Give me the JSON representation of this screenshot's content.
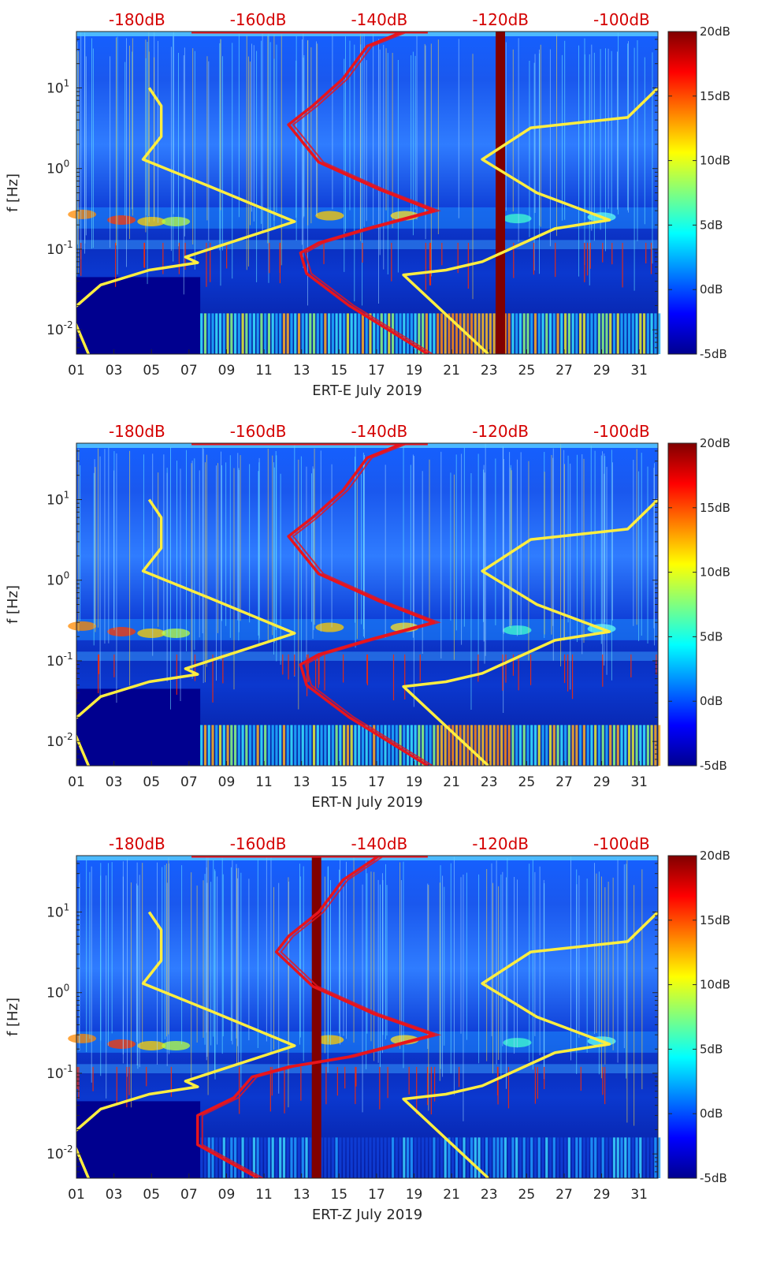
{
  "chart_data": [
    {
      "type": "heatmap",
      "station": "ERT-E",
      "xlabel": "ERT-E July 2019",
      "ylabel": "f [Hz]",
      "x_ticks": [
        "01",
        "03",
        "05",
        "07",
        "09",
        "11",
        "13",
        "15",
        "17",
        "19",
        "21",
        "23",
        "25",
        "27",
        "29",
        "31"
      ],
      "y_ticks": [
        {
          "value": 0.01,
          "base": "10",
          "exp": "-2"
        },
        {
          "value": 0.1,
          "base": "10",
          "exp": "-1"
        },
        {
          "value": 1,
          "base": "10",
          "exp": "0"
        },
        {
          "value": 10,
          "base": "10",
          "exp": "1"
        }
      ],
      "ylim": [
        0.005,
        50
      ],
      "xlim": [
        1,
        32
      ],
      "top_axis_ticks": [
        "-180dB",
        "-160dB",
        "-140dB",
        "-120dB",
        "-100dB"
      ],
      "top_axis_range_db": [
        -190,
        -94
      ],
      "colorbar": {
        "range_db": [
          -5,
          20
        ],
        "ticks": [
          "20dB",
          "15dB",
          "10dB",
          "5dB",
          "0dB",
          "-5dB"
        ]
      },
      "gap_band_day": 23.6,
      "yellow_curves": [
        {
          "name": "low noise model",
          "points": [
            [
              -178,
              10
            ],
            [
              -176,
              6
            ],
            [
              -176,
              2.5
            ],
            [
              -179,
              1.3
            ],
            [
              -168,
              0.6
            ],
            [
              -154,
              0.22
            ],
            [
              -172,
              0.08
            ],
            [
              -170,
              0.068
            ],
            [
              -178,
              0.055
            ],
            [
              -186,
              0.036
            ],
            [
              -191,
              0.017
            ],
            [
              -188,
              0.005
            ]
          ]
        },
        {
          "name": "high noise model",
          "points": [
            [
              -94,
              10
            ],
            [
              -99,
              4.3
            ],
            [
              -115,
              3.2
            ],
            [
              -123,
              1.3
            ],
            [
              -114,
              0.5
            ],
            [
              -102,
              0.23
            ],
            [
              -111,
              0.18
            ],
            [
              -123,
              0.07
            ],
            [
              -129,
              0.055
            ],
            [
              -136,
              0.048
            ],
            [
              -122,
              0.005
            ]
          ]
        }
      ],
      "red_curve": {
        "name": "station PSD",
        "points": [
          [
            -136,
            50
          ],
          [
            -142,
            33
          ],
          [
            -146,
            13
          ],
          [
            -151,
            6
          ],
          [
            -155,
            3.5
          ],
          [
            -150,
            1.2
          ],
          [
            -140,
            0.55
          ],
          [
            -131,
            0.3
          ],
          [
            -142,
            0.18
          ],
          [
            -150,
            0.12
          ],
          [
            -153,
            0.09
          ],
          [
            -152,
            0.05
          ],
          [
            -145,
            0.02
          ],
          [
            -132,
            0.005
          ]
        ]
      }
    },
    {
      "type": "heatmap",
      "station": "ERT-N",
      "xlabel": "ERT-N July 2019",
      "ylabel": "f [Hz]",
      "x_ticks": [
        "01",
        "03",
        "05",
        "07",
        "09",
        "11",
        "13",
        "15",
        "17",
        "19",
        "21",
        "23",
        "25",
        "27",
        "29",
        "31"
      ],
      "y_ticks": [
        {
          "value": 0.01,
          "base": "10",
          "exp": "-2"
        },
        {
          "value": 0.1,
          "base": "10",
          "exp": "-1"
        },
        {
          "value": 1,
          "base": "10",
          "exp": "0"
        },
        {
          "value": 10,
          "base": "10",
          "exp": "1"
        }
      ],
      "ylim": [
        0.005,
        50
      ],
      "xlim": [
        1,
        32
      ],
      "top_axis_ticks": [
        "-180dB",
        "-160dB",
        "-140dB",
        "-120dB",
        "-100dB"
      ],
      "top_axis_range_db": [
        -190,
        -94
      ],
      "colorbar": {
        "range_db": [
          -5,
          20
        ],
        "ticks": [
          "20dB",
          "15dB",
          "10dB",
          "5dB",
          "0dB",
          "-5dB"
        ]
      },
      "gap_band_day": null,
      "yellow_curves": [
        {
          "name": "low noise model",
          "points": [
            [
              -178,
              10
            ],
            [
              -176,
              6
            ],
            [
              -176,
              2.5
            ],
            [
              -179,
              1.3
            ],
            [
              -168,
              0.6
            ],
            [
              -154,
              0.22
            ],
            [
              -172,
              0.08
            ],
            [
              -170,
              0.068
            ],
            [
              -178,
              0.055
            ],
            [
              -186,
              0.036
            ],
            [
              -191,
              0.017
            ],
            [
              -188,
              0.005
            ]
          ]
        },
        {
          "name": "high noise model",
          "points": [
            [
              -94,
              10
            ],
            [
              -99,
              4.3
            ],
            [
              -115,
              3.2
            ],
            [
              -123,
              1.3
            ],
            [
              -114,
              0.5
            ],
            [
              -102,
              0.23
            ],
            [
              -111,
              0.18
            ],
            [
              -123,
              0.07
            ],
            [
              -129,
              0.055
            ],
            [
              -136,
              0.048
            ],
            [
              -122,
              0.005
            ]
          ]
        }
      ],
      "red_curve": {
        "name": "station PSD",
        "points": [
          [
            -136,
            50
          ],
          [
            -142,
            33
          ],
          [
            -146,
            13
          ],
          [
            -151,
            6
          ],
          [
            -155,
            3.5
          ],
          [
            -150,
            1.2
          ],
          [
            -140,
            0.55
          ],
          [
            -131,
            0.3
          ],
          [
            -142,
            0.18
          ],
          [
            -150,
            0.12
          ],
          [
            -153,
            0.09
          ],
          [
            -152,
            0.05
          ],
          [
            -145,
            0.02
          ],
          [
            -132,
            0.005
          ]
        ]
      }
    },
    {
      "type": "heatmap",
      "station": "ERT-Z",
      "xlabel": "ERT-Z July 2019",
      "ylabel": "f [Hz]",
      "x_ticks": [
        "01",
        "03",
        "05",
        "07",
        "09",
        "11",
        "13",
        "15",
        "17",
        "19",
        "21",
        "23",
        "25",
        "27",
        "29",
        "31"
      ],
      "y_ticks": [
        {
          "value": 0.01,
          "base": "10",
          "exp": "-2"
        },
        {
          "value": 0.1,
          "base": "10",
          "exp": "-1"
        },
        {
          "value": 1,
          "base": "10",
          "exp": "0"
        },
        {
          "value": 10,
          "base": "10",
          "exp": "1"
        }
      ],
      "ylim": [
        0.005,
        50
      ],
      "xlim": [
        1,
        32
      ],
      "top_axis_ticks": [
        "-180dB",
        "-160dB",
        "-140dB",
        "-120dB",
        "-100dB"
      ],
      "top_axis_range_db": [
        -190,
        -94
      ],
      "colorbar": {
        "range_db": [
          -5,
          20
        ],
        "ticks": [
          "20dB",
          "15dB",
          "10dB",
          "5dB",
          "0dB",
          "-5dB"
        ]
      },
      "gap_band_day": 13.8,
      "yellow_curves": [
        {
          "name": "low noise model",
          "points": [
            [
              -178,
              10
            ],
            [
              -176,
              6
            ],
            [
              -176,
              2.5
            ],
            [
              -179,
              1.3
            ],
            [
              -168,
              0.6
            ],
            [
              -154,
              0.22
            ],
            [
              -172,
              0.08
            ],
            [
              -170,
              0.068
            ],
            [
              -178,
              0.055
            ],
            [
              -186,
              0.036
            ],
            [
              -191,
              0.017
            ],
            [
              -188,
              0.005
            ]
          ]
        },
        {
          "name": "high noise model",
          "points": [
            [
              -94,
              10
            ],
            [
              -99,
              4.3
            ],
            [
              -115,
              3.2
            ],
            [
              -123,
              1.3
            ],
            [
              -114,
              0.5
            ],
            [
              -102,
              0.23
            ],
            [
              -111,
              0.18
            ],
            [
              -123,
              0.07
            ],
            [
              -129,
              0.055
            ],
            [
              -136,
              0.048
            ],
            [
              -122,
              0.005
            ]
          ]
        }
      ],
      "red_curve": {
        "name": "station PSD",
        "points": [
          [
            -140,
            50
          ],
          [
            -146,
            25
          ],
          [
            -150,
            10
          ],
          [
            -155,
            5
          ],
          [
            -157,
            3.2
          ],
          [
            -151,
            1.2
          ],
          [
            -141,
            0.55
          ],
          [
            -131,
            0.3
          ],
          [
            -145,
            0.16
          ],
          [
            -155,
            0.12
          ],
          [
            -161,
            0.09
          ],
          [
            -164,
            0.05
          ],
          [
            -170,
            0.03
          ],
          [
            -170,
            0.013
          ],
          [
            -160,
            0.005
          ]
        ]
      }
    }
  ]
}
